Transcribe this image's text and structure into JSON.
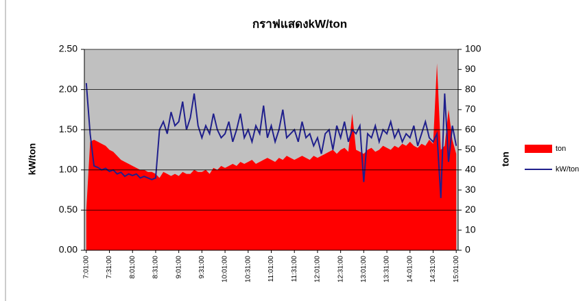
{
  "chart_data": {
    "type": "area-line",
    "title": "กราฟแสดงkW/ton",
    "y_label": "kW/ton",
    "y2_label": "ton",
    "categories": [
      "7:01:00",
      null,
      null,
      null,
      null,
      null,
      "7:31:00",
      null,
      null,
      null,
      null,
      null,
      "8:01:00",
      null,
      null,
      null,
      null,
      null,
      "8:31:00",
      null,
      null,
      null,
      null,
      null,
      "9:01:00",
      null,
      null,
      null,
      null,
      null,
      "9:31:00",
      null,
      null,
      null,
      null,
      null,
      "10:01:00",
      null,
      null,
      null,
      null,
      null,
      "10:31:00",
      null,
      null,
      null,
      null,
      null,
      "11:01:00",
      null,
      null,
      null,
      null,
      null,
      "11:31:00",
      null,
      null,
      null,
      null,
      null,
      "12:01:00",
      null,
      null,
      null,
      null,
      null,
      "12:31:00",
      null,
      null,
      null,
      null,
      null,
      "13:01:00",
      null,
      null,
      null,
      null,
      null,
      "13:31:00",
      null,
      null,
      null,
      null,
      null,
      "14:01:00",
      null,
      null,
      null,
      null,
      null,
      "14:31:00",
      null,
      null,
      null,
      null,
      null,
      "15:01:00"
    ],
    "series": [
      {
        "name": "ton",
        "color": "#ff0000",
        "axis": "y2",
        "kind": "area",
        "values": [
          20,
          54,
          55,
          54,
          53,
          52,
          50,
          49,
          47,
          45,
          44,
          43,
          42,
          41,
          40,
          40,
          39,
          39,
          38,
          36,
          39,
          38,
          37,
          38,
          37,
          39,
          38,
          38,
          40,
          39,
          39,
          40,
          38,
          41,
          40,
          42,
          41,
          42,
          43,
          42,
          44,
          43,
          44,
          45,
          43,
          44,
          45,
          46,
          45,
          44,
          46,
          45,
          47,
          46,
          45,
          46,
          47,
          46,
          45,
          47,
          46,
          47,
          48,
          49,
          50,
          48,
          50,
          51,
          49,
          68,
          50,
          49,
          48,
          50,
          51,
          49,
          50,
          52,
          51,
          50,
          52,
          51,
          53,
          52,
          54,
          52,
          51,
          53,
          52,
          55,
          53,
          93,
          50,
          52,
          70,
          55,
          48
        ]
      },
      {
        "name": "kW/ton",
        "color": "#1f1f8c",
        "axis": "y",
        "kind": "line",
        "values": [
          2.08,
          1.45,
          1.05,
          1.03,
          1.0,
          1.02,
          0.98,
          1.0,
          0.95,
          0.97,
          0.92,
          0.95,
          0.93,
          0.95,
          0.9,
          0.92,
          0.9,
          0.88,
          0.9,
          1.5,
          1.6,
          1.45,
          1.72,
          1.55,
          1.6,
          1.85,
          1.5,
          1.65,
          1.95,
          1.55,
          1.4,
          1.55,
          1.45,
          1.7,
          1.5,
          1.4,
          1.45,
          1.6,
          1.35,
          1.5,
          1.7,
          1.4,
          1.5,
          1.35,
          1.55,
          1.45,
          1.8,
          1.4,
          1.55,
          1.35,
          1.5,
          1.75,
          1.4,
          1.45,
          1.5,
          1.35,
          1.6,
          1.4,
          1.45,
          1.3,
          1.4,
          1.2,
          1.45,
          1.5,
          1.25,
          1.55,
          1.4,
          1.6,
          1.35,
          1.5,
          1.45,
          1.55,
          0.85,
          1.45,
          1.4,
          1.55,
          1.35,
          1.5,
          1.45,
          1.6,
          1.4,
          1.5,
          1.35,
          1.45,
          1.4,
          1.55,
          1.3,
          1.45,
          1.6,
          1.4,
          1.35,
          1.45,
          0.65,
          1.95,
          1.1,
          1.55,
          1.3
        ]
      }
    ],
    "ylim": [
      0,
      2.5
    ],
    "yticks": [
      {
        "value": 0,
        "label": "0.00"
      },
      {
        "value": 0.5,
        "label": "0.50"
      },
      {
        "value": 1,
        "label": "1.00"
      },
      {
        "value": 1.5,
        "label": "1.50"
      },
      {
        "value": 2,
        "label": "2.00"
      },
      {
        "value": 2.5,
        "label": "2.50"
      }
    ],
    "y2lim": [
      0,
      100
    ],
    "y2ticks": [
      0,
      10,
      20,
      30,
      40,
      50,
      60,
      70,
      80,
      90,
      100
    ],
    "grid": true,
    "legend": "right",
    "plot_background": "#c0c0c0"
  }
}
